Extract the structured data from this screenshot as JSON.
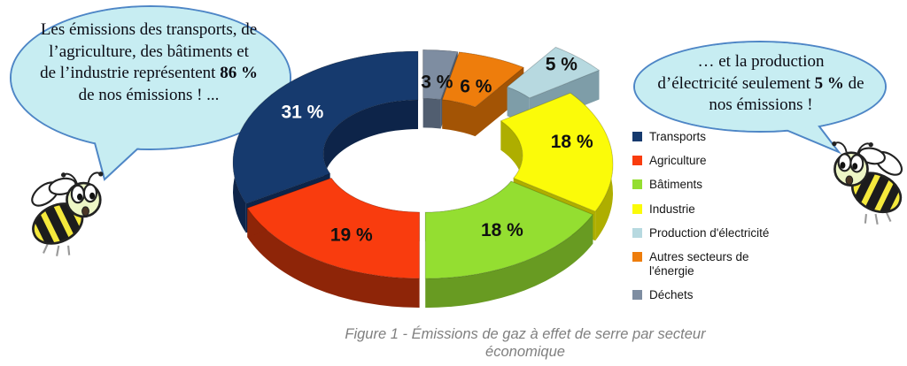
{
  "caption": "Figure 1 - Émissions de gaz à effet de serre par secteur économique",
  "bubbles": {
    "left": {
      "before": "Les émissions des transports, de l’agriculture, des bâtiments et de l’industrie représentent ",
      "bold": "86 %",
      "after": " de nos émissions ! ..."
    },
    "right": {
      "before": "… et la production d’électricité seulement ",
      "bold": "5 %",
      "after": " de nos émissions !"
    }
  },
  "colors": {
    "bubble_fill": "#c7edf2",
    "bubble_border": "#4e86c6",
    "caption_gray": "#7f7f7f"
  },
  "chart_data": {
    "type": "pie",
    "subtype": "3d-exploded-donut",
    "unit": "%",
    "start_angle_deg": 90,
    "direction": "counterclockwise",
    "legend_position": "right",
    "total": 100,
    "segments": [
      {
        "name": "Transports",
        "value": 31,
        "label_text": "31 %",
        "color": "#163a6e",
        "side_color": "#0d2449",
        "label_color": "#ffffff",
        "exploded": false
      },
      {
        "name": "Agriculture",
        "value": 19,
        "label_text": "19 %",
        "color": "#f93c0e",
        "side_color": "#8e2508",
        "label_color": "#111111",
        "exploded": false
      },
      {
        "name": "Bâtiments",
        "value": 18,
        "label_text": "18 %",
        "color": "#94de31",
        "side_color": "#689b22",
        "label_color": "#111111",
        "exploded": false
      },
      {
        "name": "Industrie",
        "value": 18,
        "label_text": "18 %",
        "color": "#fbfb09",
        "side_color": "#aeae00",
        "label_color": "#111111",
        "exploded": false
      },
      {
        "name": "Production d'électricité",
        "value": 5,
        "label_text": "5 %",
        "color": "#b7d9e0",
        "side_color": "#7e9da8",
        "label_color": "#111111",
        "exploded": true
      },
      {
        "name": "Autres secteurs de l'énergie",
        "value": 6,
        "label_text": "6 %",
        "color": "#ee7d0c",
        "side_color": "#a35405",
        "label_color": "#111111",
        "exploded": false
      },
      {
        "name": "Déchets",
        "value": 3,
        "label_text": "3 %",
        "color": "#7e8da1",
        "side_color": "#515e70",
        "label_color": "#111111",
        "exploded": false
      }
    ]
  }
}
